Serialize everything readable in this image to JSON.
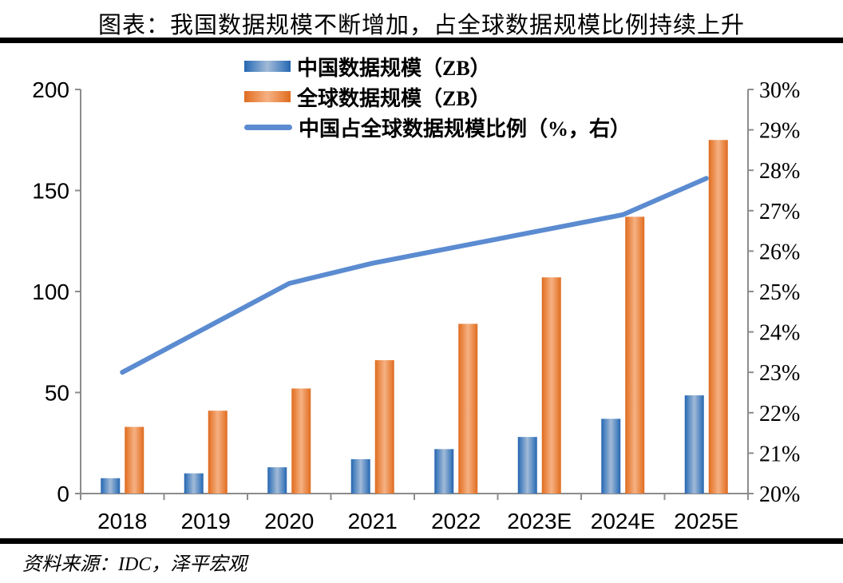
{
  "title": "图表：我国数据规模不断增加，占全球数据规模比例持续上升",
  "source": "资料来源：IDC，泽平宏观",
  "chart_data": {
    "type": "bar+line",
    "categories": [
      "2018",
      "2019",
      "2020",
      "2021",
      "2022",
      "2023E",
      "2024E",
      "2025E"
    ],
    "series": [
      {
        "name": "中国数据规模（ZB）",
        "type": "bar",
        "axis": "left",
        "values": [
          7.6,
          10,
          13,
          17,
          22,
          28,
          37,
          48.6
        ]
      },
      {
        "name": "全球数据规模（ZB）",
        "type": "bar",
        "axis": "left",
        "values": [
          33,
          41,
          52,
          66,
          84,
          107,
          137,
          175
        ]
      },
      {
        "name": "中国占全球数据规模比例（%，右）",
        "type": "line",
        "axis": "right",
        "values": [
          23.0,
          24.1,
          25.2,
          25.7,
          26.1,
          26.5,
          26.9,
          27.8
        ]
      }
    ],
    "left_axis": {
      "min": 0,
      "max": 200,
      "step": 50,
      "ticks": [
        "0",
        "50",
        "100",
        "150",
        "200"
      ]
    },
    "right_axis": {
      "min": 20,
      "max": 30,
      "step": 1,
      "ticks": [
        "20%",
        "21%",
        "22%",
        "23%",
        "24%",
        "25%",
        "26%",
        "27%",
        "28%",
        "29%",
        "30%"
      ]
    },
    "grid": "off",
    "legend_position": "top",
    "colors": {
      "china_bar_dark": "#2565ae",
      "china_bar_mid": "#4a82c0",
      "china_bar_light": "#a2bad7",
      "global_bar_dark": "#dd6b20",
      "global_bar_mid": "#e8813c",
      "global_bar_light": "#f5b183",
      "ratio_line": "#5b8bd0",
      "axis": "#8c8c8c"
    }
  }
}
